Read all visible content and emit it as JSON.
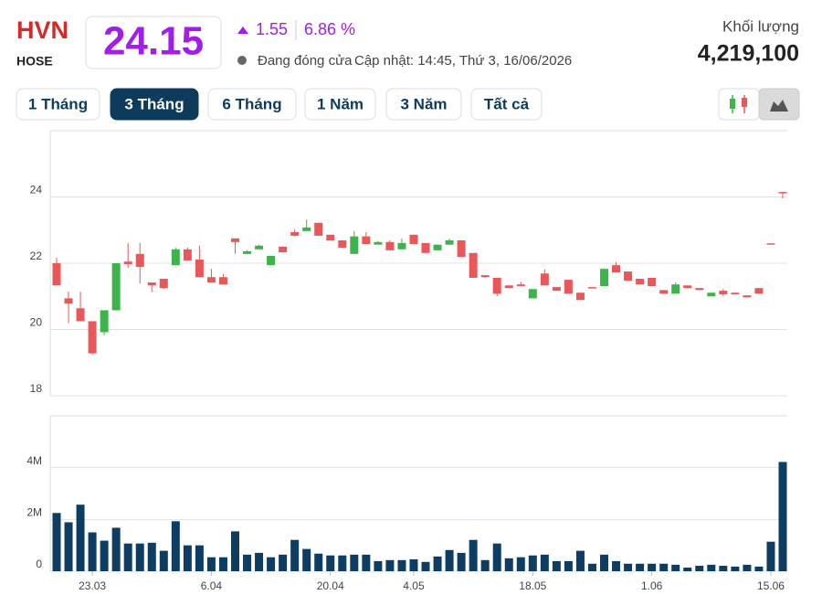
{
  "header": {
    "symbol": "HVN",
    "exchange": "HOSE",
    "price": 24.15,
    "change": 1.55,
    "change_percent": "6.86 %",
    "status": "Đang đóng cửa",
    "updated": "Cập nhật: 14:45, Thứ 3, 16/06/2026",
    "volume_label": "Khối lượng",
    "volume": "4,219,100"
  },
  "ranges": {
    "buttons": [
      "1 Tháng",
      "3 Tháng",
      "6 Tháng",
      "1 Năm",
      "3 Năm",
      "Tất cả"
    ],
    "active": 1
  },
  "chart_data": [
    {
      "type": "candlestick",
      "up_color": "#3bb54a",
      "down_color": "#e8585a",
      "grid": true,
      "ylim": [
        18,
        26
      ],
      "yticks": [
        18,
        20,
        22,
        24
      ],
      "open": [
        22.0,
        20.94,
        20.64,
        20.25,
        19.92,
        20.58,
        22.05,
        22.28,
        21.42,
        21.53,
        21.94,
        22.42,
        22.11,
        21.58,
        21.58,
        22.75,
        22.28,
        22.42,
        21.94,
        22.5,
        22.94,
        22.97,
        23.22,
        22.86,
        22.69,
        22.28,
        22.81,
        22.56,
        22.64,
        22.42,
        22.86,
        22.61,
        22.39,
        22.56,
        22.69,
        22.31,
        21.64,
        21.56,
        21.33,
        21.36,
        20.94,
        21.69,
        21.28,
        21.5,
        21.11,
        21.28,
        21.31,
        21.94,
        21.75,
        21.53,
        21.56,
        21.19,
        21.08,
        21.33,
        21.25,
        21.0,
        21.17,
        21.11,
        21.03,
        21.25,
        22.6,
        24.15
      ],
      "high": [
        22.17,
        21.14,
        21.14,
        20.25,
        20.58,
        22.0,
        22.61,
        22.61,
        21.42,
        21.53,
        22.47,
        22.47,
        22.53,
        21.83,
        21.67,
        22.75,
        22.39,
        22.56,
        22.22,
        22.5,
        23.03,
        23.31,
        23.22,
        22.86,
        22.69,
        22.97,
        22.94,
        22.67,
        22.69,
        22.75,
        22.86,
        22.61,
        22.56,
        22.75,
        22.69,
        22.31,
        21.64,
        21.56,
        21.33,
        21.44,
        21.22,
        21.81,
        21.28,
        21.5,
        21.11,
        21.28,
        21.83,
        22.03,
        21.75,
        21.53,
        21.56,
        21.19,
        21.42,
        21.33,
        21.25,
        21.11,
        21.22,
        21.11,
        21.03,
        21.25,
        22.6,
        24.15
      ],
      "low": [
        21.33,
        20.19,
        20.25,
        19.25,
        19.83,
        20.58,
        21.86,
        21.39,
        21.14,
        21.22,
        21.94,
        22.08,
        21.58,
        21.42,
        21.36,
        22.28,
        22.28,
        22.42,
        21.94,
        22.33,
        22.81,
        22.97,
        22.83,
        22.69,
        22.47,
        22.28,
        22.58,
        22.56,
        22.39,
        22.42,
        22.58,
        22.31,
        22.39,
        22.56,
        22.19,
        21.56,
        21.56,
        21.0,
        21.25,
        21.31,
        20.94,
        21.33,
        21.17,
        21.08,
        20.89,
        21.25,
        21.31,
        21.72,
        21.47,
        21.36,
        21.31,
        21.08,
        21.08,
        21.25,
        21.19,
        21.0,
        21.0,
        21.06,
        20.97,
        21.08,
        22.6,
        23.96
      ],
      "close": [
        21.33,
        20.78,
        20.25,
        19.28,
        20.58,
        22.0,
        21.97,
        21.89,
        21.33,
        21.25,
        22.42,
        22.08,
        21.58,
        21.42,
        21.36,
        22.64,
        22.36,
        22.53,
        22.22,
        22.33,
        22.83,
        23.08,
        22.83,
        22.69,
        22.47,
        22.81,
        22.58,
        22.64,
        22.39,
        22.61,
        22.58,
        22.31,
        22.56,
        22.69,
        22.19,
        21.56,
        21.58,
        21.08,
        21.25,
        21.31,
        21.22,
        21.33,
        21.17,
        21.08,
        20.89,
        21.25,
        21.83,
        21.72,
        21.47,
        21.36,
        21.31,
        21.08,
        21.36,
        21.25,
        21.19,
        21.11,
        21.06,
        21.06,
        20.97,
        21.08,
        22.6,
        24.15
      ]
    },
    {
      "type": "bar",
      "color": "#0d3d63",
      "grid": true,
      "ylim": [
        0,
        6000000
      ],
      "yticks": [
        0,
        {
          "value": 2000000,
          "label": "2M"
        },
        {
          "value": 4000000,
          "label": "4M"
        }
      ],
      "categories": [
        null,
        null,
        null,
        "23.03",
        null,
        null,
        null,
        null,
        null,
        null,
        null,
        null,
        null,
        "6.04",
        null,
        null,
        null,
        null,
        null,
        null,
        null,
        null,
        null,
        "20.04",
        null,
        null,
        null,
        null,
        null,
        null,
        "4.05",
        null,
        null,
        null,
        null,
        null,
        null,
        null,
        null,
        null,
        "18.05",
        null,
        null,
        null,
        null,
        null,
        null,
        null,
        null,
        null,
        "1.06",
        null,
        null,
        null,
        null,
        null,
        null,
        null,
        null,
        null,
        "15.06",
        null
      ],
      "values": [
        2250000,
        1890000,
        2570000,
        1500000,
        1180000,
        1680000,
        1070000,
        1070000,
        1100000,
        790000,
        1930000,
        1000000,
        1000000,
        540000,
        540000,
        1540000,
        640000,
        710000,
        540000,
        640000,
        1210000,
        860000,
        680000,
        610000,
        610000,
        640000,
        640000,
        390000,
        430000,
        430000,
        460000,
        360000,
        570000,
        820000,
        710000,
        1210000,
        430000,
        1070000,
        500000,
        540000,
        610000,
        640000,
        390000,
        390000,
        790000,
        290000,
        640000,
        390000,
        290000,
        290000,
        290000,
        290000,
        250000,
        140000,
        210000,
        250000,
        210000,
        180000,
        250000,
        180000,
        1140000,
        4219100
      ]
    }
  ]
}
